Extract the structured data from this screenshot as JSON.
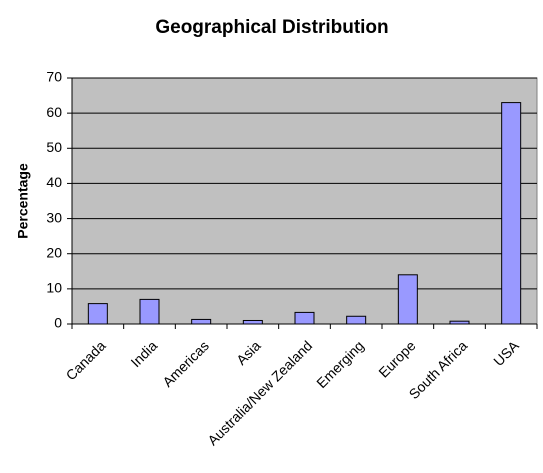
{
  "chart_data": {
    "type": "bar",
    "title": "Geographical Distribution",
    "y_label": "Percentage",
    "categories": [
      "Canada",
      "India",
      "Americas",
      "Asia",
      "Australia/New Zealand",
      "Emerging",
      "Europe",
      "South Africa",
      "USA"
    ],
    "values": [
      5.8,
      7,
      1.3,
      1,
      3.3,
      2.2,
      14,
      0.8,
      63
    ],
    "color": "#9999ff",
    "ylim": [
      0,
      70
    ],
    "yticks": [
      0,
      10,
      20,
      30,
      40,
      50,
      60,
      70
    ],
    "grid": true
  }
}
